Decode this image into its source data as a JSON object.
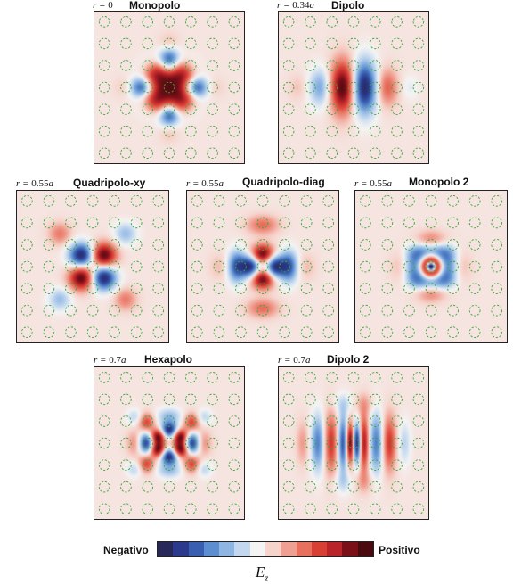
{
  "panels": [
    {
      "id": "monopolo",
      "r_prefix": "r = ",
      "r_value": "0",
      "r_suffix": "",
      "title": "Monopolo",
      "field": [
        {
          "dx": 0,
          "dy": 0,
          "sx": 0.95,
          "sy": 0.95,
          "w": 1.0,
          "shape": "square"
        },
        {
          "dx": 0,
          "dy": -1.2,
          "sx": 0.32,
          "sy": 0.4,
          "w": -0.8
        },
        {
          "dx": 0,
          "dy": 1.2,
          "sx": 0.32,
          "sy": 0.4,
          "w": -0.8
        },
        {
          "dx": -1.2,
          "dy": 0,
          "sx": 0.4,
          "sy": 0.32,
          "w": -0.8
        },
        {
          "dx": 1.2,
          "dy": 0,
          "sx": 0.4,
          "sy": 0.32,
          "w": -0.8
        },
        {
          "dx": 0,
          "dy": -2.1,
          "sx": 0.3,
          "sy": 0.3,
          "w": 0.15
        },
        {
          "dx": 0,
          "dy": 2.1,
          "sx": 0.3,
          "sy": 0.3,
          "w": 0.15
        },
        {
          "dx": -2.1,
          "dy": 0,
          "sx": 0.3,
          "sy": 0.3,
          "w": 0.12
        },
        {
          "dx": 2.1,
          "dy": 0,
          "sx": 0.3,
          "sy": 0.3,
          "w": 0.12
        },
        {
          "dx": -1,
          "dy": -1,
          "sx": 0.35,
          "sy": 0.35,
          "w": -0.12
        },
        {
          "dx": 1,
          "dy": -1,
          "sx": 0.35,
          "sy": 0.35,
          "w": -0.12
        },
        {
          "dx": -1,
          "dy": 1,
          "sx": 0.35,
          "sy": 0.35,
          "w": -0.12
        },
        {
          "dx": 1,
          "dy": 1,
          "sx": 0.35,
          "sy": 0.35,
          "w": -0.12
        }
      ]
    },
    {
      "id": "dipolo",
      "r_prefix": "r = ",
      "r_value": "0.34",
      "r_suffix": "a",
      "title": "Dipolo",
      "field": [
        {
          "dx": -0.5,
          "dy": 0,
          "sx": 0.4,
          "sy": 0.85,
          "w": 1.0
        },
        {
          "dx": 0.5,
          "dy": 0,
          "sx": 0.4,
          "sy": 0.85,
          "w": -1.0
        },
        {
          "dx": -1.55,
          "dy": 0,
          "sx": 0.35,
          "sy": 0.6,
          "w": -0.45
        },
        {
          "dx": 1.55,
          "dy": 0,
          "sx": 0.35,
          "sy": 0.6,
          "w": 0.45
        },
        {
          "dx": -2.6,
          "dy": 0,
          "sx": 0.3,
          "sy": 0.4,
          "w": 0.12
        },
        {
          "dx": 2.6,
          "dy": 0,
          "sx": 0.3,
          "sy": 0.4,
          "w": -0.12
        }
      ]
    },
    {
      "id": "quadripolo-xy",
      "r_prefix": "r = ",
      "r_value": "0.55",
      "r_suffix": "a",
      "title": "Quadripolo-xy",
      "field": [
        {
          "dx": -0.5,
          "dy": -0.5,
          "sx": 0.4,
          "sy": 0.4,
          "w": -1.0
        },
        {
          "dx": 0.5,
          "dy": -0.5,
          "sx": 0.4,
          "sy": 0.4,
          "w": 1.0
        },
        {
          "dx": -0.5,
          "dy": 0.5,
          "sx": 0.4,
          "sy": 0.4,
          "w": 1.0
        },
        {
          "dx": 0.5,
          "dy": 0.5,
          "sx": 0.4,
          "sy": 0.4,
          "w": -1.0
        },
        {
          "dx": -1.5,
          "dy": -1.5,
          "sx": 0.35,
          "sy": 0.35,
          "w": 0.35
        },
        {
          "dx": 1.5,
          "dy": -1.5,
          "sx": 0.35,
          "sy": 0.35,
          "w": -0.35
        },
        {
          "dx": -1.5,
          "dy": 1.5,
          "sx": 0.35,
          "sy": 0.35,
          "w": -0.35
        },
        {
          "dx": 1.5,
          "dy": 1.5,
          "sx": 0.35,
          "sy": 0.35,
          "w": 0.35
        }
      ]
    },
    {
      "id": "quadripolo-diag",
      "r_prefix": "r = ",
      "r_value": "0.55",
      "r_suffix": "a",
      "title": "Quadripolo-diag",
      "field": [
        {
          "dx": 0,
          "dy": -0.55,
          "sx": 0.38,
          "sy": 0.32,
          "w": 1.0
        },
        {
          "dx": 0,
          "dy": 0.55,
          "sx": 0.38,
          "sy": 0.32,
          "w": 1.0
        },
        {
          "dx": -0.55,
          "dy": 0,
          "sx": 0.32,
          "sy": 0.38,
          "w": -1.0
        },
        {
          "dx": 0.55,
          "dy": 0,
          "sx": 0.32,
          "sy": 0.38,
          "w": -1.0
        },
        {
          "dx": 0,
          "dy": -1.9,
          "sx": 0.5,
          "sy": 0.3,
          "w": 0.4
        },
        {
          "dx": 0,
          "dy": 1.9,
          "sx": 0.5,
          "sy": 0.3,
          "w": 0.4
        },
        {
          "dx": -1.2,
          "dy": 0,
          "sx": 0.28,
          "sy": 0.5,
          "w": -0.7
        },
        {
          "dx": 1.2,
          "dy": 0,
          "sx": 0.28,
          "sy": 0.5,
          "w": -0.7
        },
        {
          "dx": -2.0,
          "dy": 0,
          "sx": 0.3,
          "sy": 0.4,
          "w": 0.15
        },
        {
          "dx": 2.0,
          "dy": 0,
          "sx": 0.3,
          "sy": 0.4,
          "w": 0.15
        }
      ]
    },
    {
      "id": "monopolo-2",
      "r_prefix": "r = ",
      "r_value": "0.55",
      "r_suffix": "a",
      "title": "Monopolo 2",
      "field": [
        {
          "dx": 0,
          "dy": 0,
          "sx": 0.9,
          "sy": 0.8,
          "w": -0.95,
          "shape": "square"
        },
        {
          "dx": 0,
          "dy": 0,
          "sx": 0.34,
          "sy": 0.34,
          "w": 2.6
        },
        {
          "dx": 0,
          "dy": 0,
          "sx": 0.14,
          "sy": 0.14,
          "w": -3.0
        },
        {
          "dx": 0,
          "dy": -1.25,
          "sx": 0.45,
          "sy": 0.28,
          "w": 0.3
        },
        {
          "dx": 0,
          "dy": 1.25,
          "sx": 0.45,
          "sy": 0.28,
          "w": 0.3
        },
        {
          "dx": -1.5,
          "dy": 0,
          "sx": 0.3,
          "sy": 0.45,
          "w": 0.12
        },
        {
          "dx": 1.5,
          "dy": 0,
          "sx": 0.3,
          "sy": 0.45,
          "w": 0.12
        }
      ]
    },
    {
      "id": "hexapolo",
      "r_prefix": "r = ",
      "r_value": "0.7",
      "r_suffix": "a",
      "title": "Hexapolo",
      "field": [
        {
          "dx": 0,
          "dy": -0.6,
          "sx": 0.28,
          "sy": 0.26,
          "w": -1.0
        },
        {
          "dx": 0,
          "dy": 0.6,
          "sx": 0.28,
          "sy": 0.26,
          "w": -1.0
        },
        {
          "dx": -0.52,
          "dy": -0.3,
          "sx": 0.25,
          "sy": 0.25,
          "w": 1.0
        },
        {
          "dx": 0.52,
          "dy": -0.3,
          "sx": 0.25,
          "sy": 0.25,
          "w": 1.0
        },
        {
          "dx": -0.52,
          "dy": 0.3,
          "sx": 0.25,
          "sy": 0.25,
          "w": 1.0
        },
        {
          "dx": 0.52,
          "dy": 0.3,
          "sx": 0.25,
          "sy": 0.25,
          "w": 1.0
        },
        {
          "dx": -1.05,
          "dy": 0,
          "sx": 0.25,
          "sy": 0.35,
          "w": -0.9
        },
        {
          "dx": 1.05,
          "dy": 0,
          "sx": 0.25,
          "sy": 0.35,
          "w": -0.9
        },
        {
          "dx": -1.05,
          "dy": -0.95,
          "sx": 0.25,
          "sy": 0.3,
          "w": 0.55
        },
        {
          "dx": 1.05,
          "dy": -0.95,
          "sx": 0.25,
          "sy": 0.3,
          "w": 0.55
        },
        {
          "dx": -1.05,
          "dy": 0.95,
          "sx": 0.25,
          "sy": 0.3,
          "w": 0.55
        },
        {
          "dx": 1.05,
          "dy": 0.95,
          "sx": 0.25,
          "sy": 0.3,
          "w": 0.55
        },
        {
          "dx": 0,
          "dy": -1.25,
          "sx": 0.4,
          "sy": 0.25,
          "w": -0.35
        },
        {
          "dx": 0,
          "dy": 1.25,
          "sx": 0.4,
          "sy": 0.25,
          "w": -0.35
        },
        {
          "dx": -1.6,
          "dy": 0,
          "sx": 0.25,
          "sy": 0.4,
          "w": 0.3
        },
        {
          "dx": 1.6,
          "dy": 0,
          "sx": 0.25,
          "sy": 0.4,
          "w": 0.3
        },
        {
          "dx": -1.6,
          "dy": -1.2,
          "sx": 0.25,
          "sy": 0.25,
          "w": -0.25
        },
        {
          "dx": 1.6,
          "dy": -1.2,
          "sx": 0.25,
          "sy": 0.25,
          "w": -0.25
        },
        {
          "dx": -1.6,
          "dy": 1.2,
          "sx": 0.25,
          "sy": 0.25,
          "w": -0.25
        },
        {
          "dx": 1.6,
          "dy": 1.2,
          "sx": 0.25,
          "sy": 0.25,
          "w": -0.25
        }
      ]
    },
    {
      "id": "dipolo-2",
      "r_prefix": "r = ",
      "r_value": "0.7",
      "r_suffix": "a",
      "title": "Dipolo 2",
      "field": [
        {
          "dx": -0.15,
          "dy": 0,
          "sx": 0.14,
          "sy": 0.65,
          "w": 1.1
        },
        {
          "dx": 0.15,
          "dy": 0,
          "sx": 0.14,
          "sy": 0.65,
          "w": -1.1
        },
        {
          "dx": -0.48,
          "dy": 0,
          "sx": 0.16,
          "sy": 0.9,
          "w": -0.8
        },
        {
          "dx": 0.48,
          "dy": 0,
          "sx": 0.16,
          "sy": 0.9,
          "w": 0.8
        },
        {
          "dx": -1.05,
          "dy": 0,
          "sx": 0.22,
          "sy": 1.0,
          "w": 0.6
        },
        {
          "dx": 1.05,
          "dy": 0,
          "sx": 0.22,
          "sy": 1.0,
          "w": -0.6
        },
        {
          "dx": -1.65,
          "dy": 0,
          "sx": 0.22,
          "sy": 0.9,
          "w": -0.6
        },
        {
          "dx": 1.65,
          "dy": 0,
          "sx": 0.22,
          "sy": 0.9,
          "w": 0.6
        },
        {
          "dx": -2.35,
          "dy": 0,
          "sx": 0.2,
          "sy": 0.7,
          "w": 0.25
        },
        {
          "dx": 2.35,
          "dy": 0,
          "sx": 0.2,
          "sy": 0.7,
          "w": -0.25
        },
        {
          "dx": -0.45,
          "dy": -1.8,
          "sx": 0.35,
          "sy": 0.35,
          "w": -0.2
        },
        {
          "dx": 0.45,
          "dy": -1.8,
          "sx": 0.35,
          "sy": 0.35,
          "w": 0.2
        },
        {
          "dx": -0.45,
          "dy": 1.8,
          "sx": 0.35,
          "sy": 0.35,
          "w": -0.2
        },
        {
          "dx": 0.45,
          "dy": 1.8,
          "sx": 0.35,
          "sy": 0.35,
          "w": 0.2
        }
      ]
    }
  ],
  "legend": {
    "negative_label": "Negativo",
    "positive_label": "Positivo",
    "quantity_symbol": "E",
    "quantity_subscript": "z",
    "colormap": [
      "#28285a",
      "#2b3a8c",
      "#3a5fb0",
      "#5d8fd0",
      "#8fb6e3",
      "#c3d8ef",
      "#f4f4f4",
      "#f6d4cc",
      "#f0a092",
      "#e8705e",
      "#d94035",
      "#b8242a",
      "#7c1018",
      "#4a0a10"
    ]
  },
  "pillar_color": "#38a838"
}
